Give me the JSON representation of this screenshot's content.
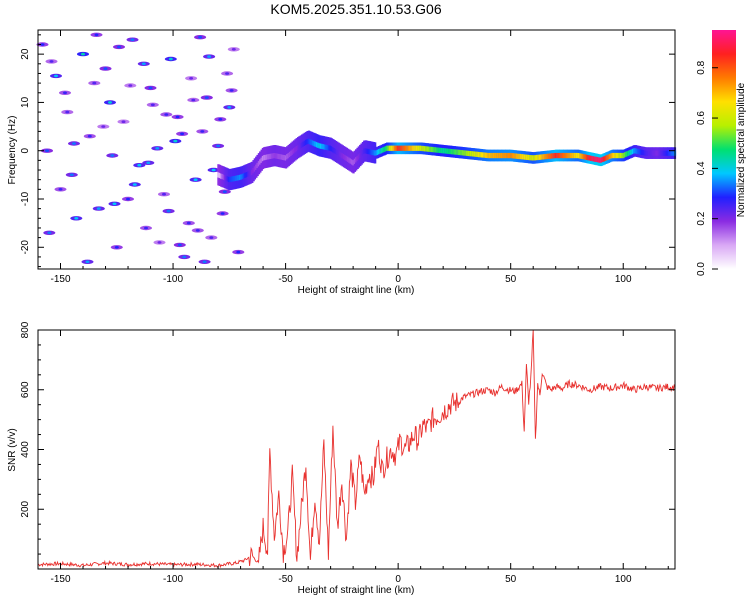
{
  "title": "KOM5.2025.351.10.53.G06",
  "colors": {
    "snr_line": "#e8312e",
    "axis": "#000000"
  },
  "chart_data": [
    {
      "type": "heatmap",
      "title": "KOM5.2025.351.10.53.G06",
      "xlabel": "Height of straight line (km)",
      "ylabel": "Frequency (Hz)",
      "xlim": [
        -160,
        123
      ],
      "ylim": [
        -24.5,
        25
      ],
      "xticks": [
        -150,
        -100,
        -50,
        0,
        50,
        100
      ],
      "yticks": [
        -20,
        -10,
        0,
        10,
        20
      ],
      "colorbar": {
        "label": "Normalized spectral amplitude",
        "range": [
          0,
          0.95
        ],
        "ticks": [
          0.0,
          0.2,
          0.4,
          0.6,
          0.8
        ],
        "colormap": [
          "#ffffff",
          "#d9a8f5",
          "#8a2be2",
          "#2020ff",
          "#00c8ff",
          "#00e070",
          "#b8f000",
          "#ffe000",
          "#ff7a00",
          "#ff2020",
          "#ff1493"
        ]
      },
      "ridge": {
        "description": "Doppler frequency trace of the signal",
        "x": [
          -80,
          -75,
          -70,
          -65,
          -60,
          -55,
          -50,
          -45,
          -40,
          -35,
          -30,
          -25,
          -20,
          -15,
          -10,
          -5,
          0,
          10,
          20,
          30,
          40,
          50,
          60,
          70,
          80,
          85,
          90,
          95,
          100,
          105,
          110,
          115,
          123
        ],
        "freq": [
          -5.0,
          -6.0,
          -5.5,
          -4.5,
          -1.5,
          -1.0,
          -1.5,
          0.5,
          2.0,
          1.0,
          0.5,
          -1.0,
          -2.5,
          0.0,
          -0.5,
          0.5,
          0.5,
          0.5,
          0.0,
          -0.5,
          -1.0,
          -1.0,
          -1.5,
          -1.0,
          -1.0,
          -1.5,
          -2.0,
          -1.0,
          -1.0,
          0.0,
          -0.5,
          -0.5,
          -0.5
        ],
        "amplitude": [
          0.05,
          0.3,
          0.35,
          0.2,
          0.12,
          0.18,
          0.15,
          0.2,
          0.3,
          0.4,
          0.28,
          0.2,
          0.15,
          0.25,
          0.35,
          0.5,
          0.85,
          0.6,
          0.45,
          0.55,
          0.7,
          0.75,
          0.6,
          0.85,
          0.65,
          0.88,
          0.92,
          0.7,
          0.55,
          0.35,
          0.25,
          0.2,
          0.35
        ]
      },
      "noise": {
        "description": "scattered low-amplitude noise blobs below -70 km",
        "x": [
          -158,
          -152,
          -147,
          -145,
          -140,
          -137,
          -133,
          -130,
          -128,
          -125,
          -122,
          -118,
          -115,
          -112,
          -110,
          -107,
          -104,
          -101,
          -98,
          -95,
          -92,
          -90,
          -87,
          -85,
          -83,
          -80,
          -78,
          -75,
          -73,
          -156,
          -150,
          -143,
          -135,
          -127,
          -120,
          -113,
          -106,
          -99,
          -93,
          -88,
          -82,
          -76,
          -71,
          -155,
          -148,
          -138,
          -131,
          -124,
          -117,
          -109,
          -102,
          -96,
          -89,
          -84,
          -77,
          -154,
          -144,
          -134,
          -126,
          -119,
          -111,
          -103,
          -97,
          -91,
          -86,
          -79,
          -74
        ],
        "freq": [
          22.0,
          15.5,
          8.0,
          -5.0,
          20.0,
          3.0,
          -12.0,
          17.0,
          10.0,
          -20.0,
          6.0,
          23.0,
          -3.0,
          -16.0,
          13.0,
          0.5,
          -9.0,
          19.0,
          7.0,
          -22.0,
          15.0,
          -6.0,
          4.0,
          11.0,
          -18.0,
          1.0,
          -13.0,
          9.0,
          21.0,
          0.0,
          -8.0,
          -14.0,
          14.0,
          -1.0,
          -10.0,
          18.0,
          -19.0,
          2.0,
          -15.0,
          23.5,
          -4.0,
          16.0,
          -21.0,
          -17.0,
          12.0,
          -23.0,
          5.0,
          21.5,
          -7.0,
          9.5,
          -12.5,
          3.5,
          -16.5,
          19.5,
          -8.5,
          18.5,
          1.5,
          24.0,
          -11.0,
          13.5,
          -2.5,
          7.5,
          -19.5,
          10.5,
          -23.0,
          6.5,
          12.5
        ],
        "amplitude": [
          0.08,
          0.12,
          0.06,
          0.1,
          0.14,
          0.07,
          0.11,
          0.09,
          0.13,
          0.08,
          0.05,
          0.1,
          0.12,
          0.07,
          0.09,
          0.11,
          0.06,
          0.13,
          0.08,
          0.1,
          0.05,
          0.12,
          0.07,
          0.09,
          0.06,
          0.1,
          0.08,
          0.11,
          0.05,
          0.09,
          0.07,
          0.12,
          0.06,
          0.1,
          0.08,
          0.11,
          0.05,
          0.13,
          0.07,
          0.09,
          0.12,
          0.06,
          0.08,
          0.1,
          0.07,
          0.11,
          0.05,
          0.09,
          0.12,
          0.06,
          0.1,
          0.08,
          0.07,
          0.11,
          0.09,
          0.06,
          0.1,
          0.08,
          0.12,
          0.05,
          0.11,
          0.07,
          0.09,
          0.06,
          0.1,
          0.08,
          0.07
        ]
      }
    },
    {
      "type": "line",
      "xlabel": "Height of straight line (km)",
      "ylabel": "SNR (v/v)",
      "xlim": [
        -160,
        123
      ],
      "ylim": [
        0,
        800
      ],
      "xticks": [
        -150,
        -100,
        -50,
        0,
        50,
        100
      ],
      "yticks": [
        200,
        400,
        600,
        800
      ],
      "series": [
        {
          "name": "SNR",
          "x": [
            -160,
            -150,
            -140,
            -130,
            -120,
            -110,
            -100,
            -90,
            -80,
            -72,
            -68,
            -65,
            -62,
            -60,
            -58,
            -57,
            -55,
            -53,
            -51,
            -49,
            -47,
            -45,
            -43,
            -41,
            -39,
            -37,
            -35,
            -33,
            -31,
            -29,
            -27,
            -25,
            -23,
            -21,
            -19,
            -17,
            -15,
            -13,
            -11,
            -9,
            -7,
            -5,
            -3,
            -1,
            1,
            3,
            5,
            7,
            9,
            11,
            13,
            15,
            17,
            19,
            21,
            23,
            25,
            27,
            29,
            31,
            33,
            35,
            37,
            40,
            43,
            46,
            49,
            52,
            55,
            56,
            57,
            58,
            59,
            60,
            61,
            62,
            63,
            64,
            66,
            68,
            70,
            73,
            76,
            80,
            85,
            90,
            95,
            100,
            105,
            110,
            115,
            120,
            123
          ],
          "y": [
            15,
            18,
            12,
            20,
            15,
            18,
            14,
            16,
            12,
            20,
            30,
            45,
            20,
            140,
            60,
            395,
            110,
            250,
            60,
            120,
            310,
            40,
            200,
            360,
            30,
            250,
            90,
            420,
            50,
            480,
            140,
            300,
            100,
            350,
            220,
            380,
            250,
            320,
            300,
            420,
            330,
            370,
            400,
            380,
            430,
            400,
            420,
            450,
            430,
            480,
            470,
            500,
            510,
            520,
            535,
            550,
            555,
            560,
            575,
            580,
            585,
            590,
            595,
            600,
            590,
            610,
            600,
            595,
            620,
            460,
            680,
            560,
            640,
            800,
            430,
            620,
            580,
            660,
            610,
            600,
            610,
            605,
            620,
            615,
            600,
            610,
            605,
            615,
            600,
            610,
            605,
            610,
            608
          ]
        }
      ]
    }
  ]
}
